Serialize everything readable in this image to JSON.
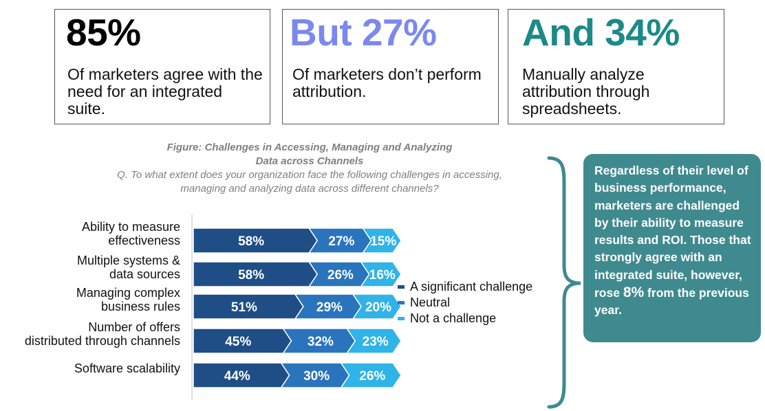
{
  "stats": [
    {
      "big": "85%",
      "desc": "Of marketers agree with the need for an integrated suite.",
      "color": "#000000"
    },
    {
      "big": "But 27%",
      "desc": "Of marketers don’t perform attribution.",
      "color": "#7b88f0"
    },
    {
      "big": "And 34%",
      "desc": "Manually analyze attribution through spreadsheets.",
      "color": "#1c8a87"
    }
  ],
  "figure": {
    "title_line1": "Figure: Challenges in Accessing, Managing and Analyzing",
    "title_line2": "Data across Channels",
    "question_line1": "Q. To what extent does your organization face the following challenges in accessing,",
    "question_line2": "managing and analyzing data across different channels?"
  },
  "chart_data": {
    "type": "bar",
    "orientation": "horizontal",
    "stacked": true,
    "categories": [
      [
        "Ability to measure",
        "effectiveness"
      ],
      [
        "Multiple systems &",
        "data sources"
      ],
      [
        "Managing complex",
        "business rules"
      ],
      [
        "Number of offers",
        "distributed through channels"
      ],
      [
        "Software scalability"
      ]
    ],
    "series": [
      {
        "name": "A significant challenge",
        "values": [
          58,
          58,
          51,
          45,
          44
        ],
        "color": "#1f4e87"
      },
      {
        "name": "Neutral",
        "values": [
          27,
          26,
          29,
          32,
          30
        ],
        "color": "#2a74bd"
      },
      {
        "name": "Not a challenge",
        "values": [
          15,
          16,
          20,
          23,
          26
        ],
        "color": "#2fb3e8"
      }
    ],
    "value_suffix": "%",
    "legend_position": "right"
  },
  "callout": {
    "text_before": "Regardless of their level of business performance, marketers are challenged by their ability to measure results and ROI.   Those that strongly agree with an integrated suite, however, rose ",
    "highlight": "8%",
    "text_after": " from the previous year."
  },
  "colors": {
    "callout_bg": "#3f8a8f",
    "bracket": "#3f8a8f"
  }
}
